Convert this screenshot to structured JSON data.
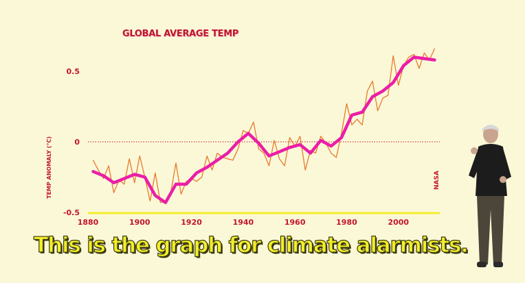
{
  "caption": "This is the graph for climate alarmists.",
  "side_label": "NASA",
  "colors": {
    "raw": "#e8792b",
    "smooth": "#ea1ea7",
    "axis": "#f3ee2a",
    "text": "#c1152b",
    "background": "#fbf8d8"
  },
  "chart_data": {
    "type": "line",
    "title": "GLOBAL AVERAGE TEMP",
    "ylabel": "TEMP ANOMALY (°C)",
    "xlabel": "",
    "xlim": [
      1880,
      2016
    ],
    "ylim": [
      -0.5,
      0.62
    ],
    "x_ticks": [
      1880,
      1900,
      1920,
      1940,
      1960,
      1980,
      2000
    ],
    "y_ticks": [
      {
        "value": 0.5,
        "label": "0.5"
      },
      {
        "value": 0,
        "label": "0"
      },
      {
        "value": -0.5,
        "label": "-0.5"
      }
    ],
    "zero_line": true,
    "series": [
      {
        "role": "annual",
        "x": [
          1882,
          1884,
          1886,
          1888,
          1890,
          1892,
          1894,
          1896,
          1898,
          1900,
          1902,
          1904,
          1906,
          1908,
          1910,
          1912,
          1914,
          1916,
          1918,
          1920,
          1922,
          1924,
          1926,
          1928,
          1930,
          1932,
          1934,
          1936,
          1938,
          1940,
          1942,
          1944,
          1946,
          1948,
          1950,
          1952,
          1954,
          1956,
          1958,
          1960,
          1962,
          1964,
          1966,
          1968,
          1970,
          1972,
          1974,
          1976,
          1978,
          1980,
          1982,
          1984,
          1986,
          1988,
          1990,
          1992,
          1994,
          1996,
          1998,
          2000,
          2002,
          2004,
          2006,
          2008,
          2010,
          2012,
          2014
        ],
        "y": [
          -0.13,
          -0.2,
          -0.26,
          -0.17,
          -0.36,
          -0.27,
          -0.3,
          -0.12,
          -0.29,
          -0.1,
          -0.25,
          -0.42,
          -0.22,
          -0.43,
          -0.42,
          -0.36,
          -0.15,
          -0.37,
          -0.28,
          -0.26,
          -0.28,
          -0.25,
          -0.1,
          -0.2,
          -0.08,
          -0.11,
          -0.12,
          -0.13,
          -0.05,
          0.08,
          0.06,
          0.14,
          -0.05,
          -0.08,
          -0.17,
          0.01,
          -0.12,
          -0.17,
          0.03,
          -0.03,
          0.04,
          -0.2,
          -0.06,
          -0.08,
          0.04,
          -0.01,
          -0.08,
          -0.11,
          0.06,
          0.27,
          0.12,
          0.16,
          0.12,
          0.36,
          0.43,
          0.22,
          0.31,
          0.33,
          0.61,
          0.4,
          0.54,
          0.6,
          0.62,
          0.52,
          0.63,
          0.58,
          0.66
        ]
      },
      {
        "role": "smoothed",
        "x": [
          1882,
          1886,
          1890,
          1894,
          1898,
          1902,
          1906,
          1910,
          1914,
          1918,
          1922,
          1926,
          1930,
          1934,
          1938,
          1942,
          1946,
          1950,
          1954,
          1958,
          1962,
          1966,
          1970,
          1974,
          1978,
          1982,
          1986,
          1990,
          1994,
          1998,
          2002,
          2006,
          2010,
          2014
        ],
        "y": [
          -0.21,
          -0.24,
          -0.29,
          -0.26,
          -0.23,
          -0.25,
          -0.38,
          -0.43,
          -0.3,
          -0.3,
          -0.22,
          -0.18,
          -0.13,
          -0.08,
          0.0,
          0.06,
          -0.01,
          -0.1,
          -0.07,
          -0.04,
          -0.02,
          -0.08,
          0.01,
          -0.03,
          0.03,
          0.19,
          0.21,
          0.32,
          0.36,
          0.42,
          0.54,
          0.6,
          0.59,
          0.58
        ]
      }
    ]
  }
}
